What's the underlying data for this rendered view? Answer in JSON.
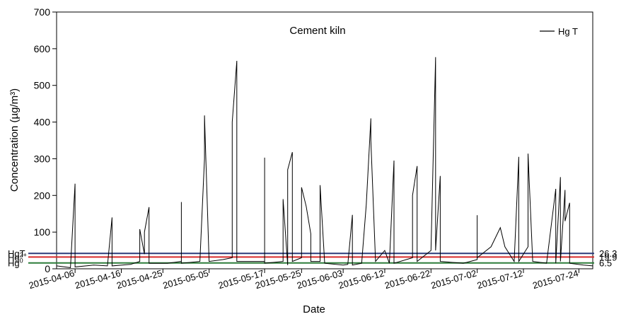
{
  "chart_data": {
    "type": "line",
    "title": "Cement kiln",
    "xlabel": "Date",
    "ylabel": "Concentration (µg/m³)",
    "ylim": [
      0,
      700
    ],
    "xlim": [
      "2015-04-02",
      "2015-07-27"
    ],
    "yticks": [
      0,
      100,
      200,
      300,
      400,
      500,
      600,
      700
    ],
    "xticks": [
      "2015-04-06",
      "2015-04-16",
      "2015-04-25",
      "2015-05-05",
      "2015-05-17",
      "2015-05-25",
      "2015-06-03",
      "2015-06-12",
      "2015-06-22",
      "2015-07-02",
      "2015-07-12",
      "2015-07-24"
    ],
    "legend": {
      "label": "Hg T",
      "position": "top-right"
    },
    "grid": false,
    "series": [
      {
        "name": "Hg T",
        "color": "#000000",
        "points": [
          [
            "2015-04-02",
            8
          ],
          [
            "2015-04-05",
            3
          ],
          [
            "2015-04-06",
            232
          ],
          [
            "2015-04-06",
            5
          ],
          [
            "2015-04-10",
            10
          ],
          [
            "2015-04-13",
            8
          ],
          [
            "2015-04-14",
            140
          ],
          [
            "2015-04-14",
            8
          ],
          [
            "2015-04-18",
            12
          ],
          [
            "2015-04-20",
            20
          ],
          [
            "2015-04-20",
            108
          ],
          [
            "2015-04-21",
            40
          ],
          [
            "2015-04-21",
            100
          ],
          [
            "2015-04-22",
            168
          ],
          [
            "2015-04-22",
            15
          ],
          [
            "2015-04-26",
            15
          ],
          [
            "2015-04-29",
            20
          ],
          [
            "2015-04-29",
            182
          ],
          [
            "2015-04-29",
            15
          ],
          [
            "2015-05-03",
            20
          ],
          [
            "2015-05-04",
            300
          ],
          [
            "2015-05-04",
            418
          ],
          [
            "2015-05-05",
            20
          ],
          [
            "2015-05-08",
            25
          ],
          [
            "2015-05-10",
            30
          ],
          [
            "2015-05-10",
            400
          ],
          [
            "2015-05-11",
            567
          ],
          [
            "2015-05-11",
            20
          ],
          [
            "2015-05-14",
            20
          ],
          [
            "2015-05-17",
            20
          ],
          [
            "2015-05-17",
            303
          ],
          [
            "2015-05-17",
            15
          ],
          [
            "2015-05-21",
            20
          ],
          [
            "2015-05-21",
            190
          ],
          [
            "2015-05-22",
            10
          ],
          [
            "2015-05-22",
            270
          ],
          [
            "2015-05-23",
            318
          ],
          [
            "2015-05-23",
            20
          ],
          [
            "2015-05-25",
            30
          ],
          [
            "2015-05-25",
            222
          ],
          [
            "2015-05-26",
            170
          ],
          [
            "2015-05-27",
            95
          ],
          [
            "2015-05-27",
            20
          ],
          [
            "2015-05-29",
            20
          ],
          [
            "2015-05-29",
            228
          ],
          [
            "2015-05-30",
            15
          ],
          [
            "2015-06-03",
            10
          ],
          [
            "2015-06-04",
            12
          ],
          [
            "2015-06-05",
            147
          ],
          [
            "2015-06-05",
            10
          ],
          [
            "2015-06-07",
            15
          ],
          [
            "2015-06-08",
            175
          ],
          [
            "2015-06-09",
            410
          ],
          [
            "2015-06-09",
            350
          ],
          [
            "2015-06-10",
            20
          ],
          [
            "2015-06-12",
            50
          ],
          [
            "2015-06-13",
            15
          ],
          [
            "2015-06-14",
            295
          ],
          [
            "2015-06-14",
            15
          ],
          [
            "2015-06-18",
            30
          ],
          [
            "2015-06-18",
            200
          ],
          [
            "2015-06-19",
            280
          ],
          [
            "2015-06-19",
            20
          ],
          [
            "2015-06-22",
            50
          ],
          [
            "2015-06-23",
            577
          ],
          [
            "2015-06-23",
            50
          ],
          [
            "2015-06-24",
            253
          ],
          [
            "2015-06-24",
            20
          ],
          [
            "2015-06-29",
            15
          ],
          [
            "2015-07-02",
            25
          ],
          [
            "2015-07-02",
            146
          ],
          [
            "2015-07-02",
            30
          ],
          [
            "2015-07-05",
            60
          ],
          [
            "2015-07-07",
            112
          ],
          [
            "2015-07-08",
            60
          ],
          [
            "2015-07-10",
            20
          ],
          [
            "2015-07-11",
            305
          ],
          [
            "2015-07-11",
            20
          ],
          [
            "2015-07-13",
            60
          ],
          [
            "2015-07-13",
            230
          ],
          [
            "2015-07-13",
            314
          ],
          [
            "2015-07-14",
            20
          ],
          [
            "2015-07-17",
            15
          ],
          [
            "2015-07-19",
            218
          ],
          [
            "2015-07-19",
            15
          ],
          [
            "2015-07-20",
            250
          ],
          [
            "2015-07-20",
            20
          ],
          [
            "2015-07-21",
            215
          ],
          [
            "2015-07-21",
            130
          ],
          [
            "2015-07-22",
            180
          ],
          [
            "2015-07-22",
            15
          ],
          [
            "2015-07-25",
            10
          ],
          [
            "2015-07-27",
            8
          ]
        ]
      }
    ],
    "reference_lines": [
      {
        "label_main": "HgT",
        "label_sup": "",
        "value": 26.3,
        "value_label": "26.3",
        "color": "#2b3a7a",
        "y_level": 42
      },
      {
        "label_main": "Hg",
        "label_sup": "2+",
        "value": 19.9,
        "value_label": "19.9",
        "color": "#d62a2a",
        "y_level": 32
      },
      {
        "label_main": "Hg",
        "label_sup": "0",
        "value": 6.5,
        "value_label": "6.5",
        "color": "#2e7d3a",
        "y_level": 16
      }
    ]
  }
}
